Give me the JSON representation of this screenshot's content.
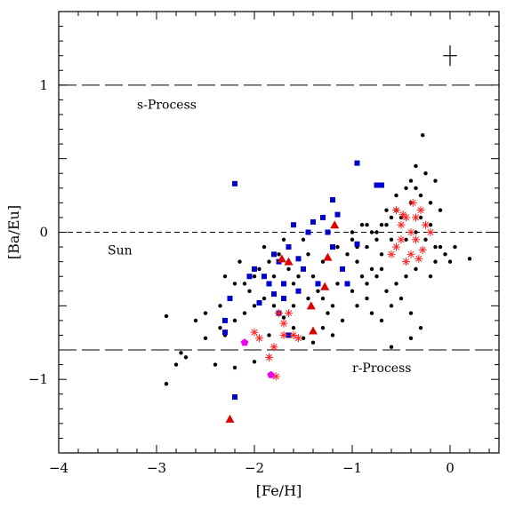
{
  "chart_data": {
    "type": "scatter",
    "xlabel": "[Fe/H]",
    "ylabel": "[Ba/Eu]",
    "xlim": [
      -4,
      0.5
    ],
    "ylim": [
      -1.5,
      1.5
    ],
    "x_ticks": [
      {
        "value": -4,
        "label": "−4"
      },
      {
        "value": -3,
        "label": "−3"
      },
      {
        "value": -2,
        "label": "−2"
      },
      {
        "value": -1,
        "label": "−1"
      },
      {
        "value": 0,
        "label": "0"
      }
    ],
    "y_ticks": [
      {
        "value": 1,
        "label": "1"
      },
      {
        "value": 0,
        "label": "0"
      },
      {
        "value": -1,
        "label": "−1"
      }
    ],
    "reference_lines": [
      {
        "y": 1.0,
        "label": "s-Process",
        "style": "long-dash",
        "label_x": -3.2,
        "label_y": 0.87
      },
      {
        "y": 0.0,
        "label": "Sun",
        "style": "short-dash",
        "label_x": -3.5,
        "label_y": -0.12
      },
      {
        "y": -0.8,
        "label": "r-Process",
        "style": "long-dash",
        "label_x": -1.0,
        "label_y": -0.92
      }
    ],
    "error_bar_marker": {
      "x": 0.0,
      "y": 1.2,
      "dx": 0.07,
      "dy": 0.07
    },
    "series": [
      {
        "marker": "circle",
        "color": "#000000",
        "points": [
          [
            -2.9,
            -0.57
          ],
          [
            -2.9,
            -1.03
          ],
          [
            -2.8,
            -0.9
          ],
          [
            -2.7,
            -0.85
          ],
          [
            -2.75,
            -0.82
          ],
          [
            -2.6,
            -0.6
          ],
          [
            -2.5,
            -0.55
          ],
          [
            -2.35,
            -0.65
          ],
          [
            -2.35,
            -0.5
          ],
          [
            -2.25,
            -0.45
          ],
          [
            -2.3,
            -0.3
          ],
          [
            -2.2,
            -0.35
          ],
          [
            -2.15,
            -0.2
          ],
          [
            -2.1,
            -0.35
          ],
          [
            -2.05,
            -0.4
          ],
          [
            -2.0,
            -0.3
          ],
          [
            -1.95,
            -0.25
          ],
          [
            -1.9,
            -0.1
          ],
          [
            -1.85,
            -0.2
          ],
          [
            -1.8,
            -0.3
          ],
          [
            -1.75,
            -0.15
          ],
          [
            -1.7,
            -0.05
          ],
          [
            -1.65,
            -0.25
          ],
          [
            -1.6,
            -0.35
          ],
          [
            -1.55,
            -0.3
          ],
          [
            -1.5,
            -0.05
          ],
          [
            -1.45,
            -0.15
          ],
          [
            -1.4,
            -0.3
          ],
          [
            -1.35,
            -0.4
          ],
          [
            -1.3,
            -0.45
          ],
          [
            -1.25,
            -0.55
          ],
          [
            -1.2,
            -0.5
          ],
          [
            -1.15,
            -0.35
          ],
          [
            -1.1,
            -0.25
          ],
          [
            -1.05,
            -0.15
          ],
          [
            -1.0,
            -0.05
          ],
          [
            -0.95,
            -0.2
          ],
          [
            -0.9,
            0.05
          ],
          [
            -0.85,
            -0.1
          ],
          [
            -0.8,
            -0.25
          ],
          [
            -0.75,
            0.0
          ],
          [
            -0.7,
            -0.15
          ],
          [
            -0.65,
            0.05
          ],
          [
            -0.6,
            -0.05
          ],
          [
            -0.55,
            0.15
          ],
          [
            -0.5,
            0.1
          ],
          [
            -0.45,
            -0.05
          ],
          [
            -0.4,
            0.2
          ],
          [
            -0.35,
            0.0
          ],
          [
            -0.3,
            0.1
          ],
          [
            -0.25,
            -0.05
          ],
          [
            -0.2,
            0.05
          ],
          [
            -0.15,
            -0.1
          ],
          [
            -0.1,
            0.15
          ],
          [
            -0.05,
            -0.15
          ],
          [
            0.0,
            -0.2
          ],
          [
            0.05,
            -0.1
          ],
          [
            -0.28,
            0.66
          ],
          [
            -0.35,
            0.45
          ],
          [
            -0.25,
            0.4
          ],
          [
            -0.15,
            0.35
          ],
          [
            -1.0,
            -0.4
          ],
          [
            -0.95,
            -0.5
          ],
          [
            -0.85,
            -0.45
          ],
          [
            -0.8,
            -0.55
          ],
          [
            -0.7,
            -0.6
          ],
          [
            -0.6,
            -0.5
          ],
          [
            -0.5,
            -0.45
          ],
          [
            -0.4,
            -0.55
          ],
          [
            -0.3,
            -0.65
          ],
          [
            -0.6,
            -0.78
          ],
          [
            -0.4,
            -0.72
          ],
          [
            -1.1,
            -0.6
          ],
          [
            -1.2,
            -0.7
          ],
          [
            -1.3,
            -0.65
          ],
          [
            -1.4,
            -0.75
          ],
          [
            -1.5,
            -0.72
          ],
          [
            -1.6,
            -0.65
          ],
          [
            -1.7,
            -0.58
          ],
          [
            -1.8,
            -0.5
          ],
          [
            -1.9,
            -0.45
          ],
          [
            -2.0,
            -0.5
          ],
          [
            -2.1,
            -0.55
          ],
          [
            -2.2,
            -0.6
          ],
          [
            -2.3,
            -0.7
          ],
          [
            -2.4,
            -0.9
          ],
          [
            -2.5,
            -0.72
          ],
          [
            -2.2,
            -0.92
          ],
          [
            -2.0,
            -0.88
          ],
          [
            -1.85,
            -0.7
          ],
          [
            -1.15,
            -0.1
          ],
          [
            -1.25,
            0.0
          ],
          [
            -1.3,
            -0.2
          ],
          [
            -1.45,
            -0.45
          ],
          [
            -1.6,
            -0.5
          ],
          [
            -0.9,
            -0.3
          ],
          [
            -0.85,
            -0.35
          ],
          [
            -0.75,
            -0.3
          ],
          [
            -0.7,
            -0.25
          ],
          [
            -0.65,
            -0.4
          ],
          [
            -0.55,
            -0.35
          ],
          [
            -0.45,
            -0.3
          ],
          [
            -0.35,
            -0.25
          ],
          [
            -0.2,
            -0.3
          ],
          [
            -0.15,
            -0.2
          ],
          [
            -0.1,
            -0.1
          ],
          [
            -0.6,
            0.1
          ],
          [
            -0.55,
            0.25
          ],
          [
            -0.45,
            0.3
          ],
          [
            -0.4,
            0.35
          ],
          [
            -0.35,
            0.3
          ],
          [
            -0.3,
            0.25
          ],
          [
            -0.2,
            0.2
          ],
          [
            -0.65,
            0.15
          ],
          [
            -0.7,
            0.05
          ],
          [
            -0.8,
            0.0
          ],
          [
            -0.75,
            -0.05
          ],
          [
            -0.85,
            0.05
          ],
          [
            -1.0,
            0.0
          ],
          [
            -0.95,
            -0.1
          ],
          [
            0.2,
            -0.18
          ]
        ]
      },
      {
        "marker": "square",
        "color": "#0000cc",
        "points": [
          [
            -2.2,
            -1.12
          ],
          [
            -2.3,
            -0.6
          ],
          [
            -2.3,
            -0.68
          ],
          [
            -2.25,
            -0.45
          ],
          [
            -2.2,
            0.33
          ],
          [
            -2.05,
            -0.3
          ],
          [
            -2.0,
            -0.25
          ],
          [
            -1.95,
            -0.48
          ],
          [
            -1.9,
            -0.3
          ],
          [
            -1.85,
            -0.35
          ],
          [
            -1.8,
            -0.15
          ],
          [
            -1.75,
            -0.2
          ],
          [
            -1.7,
            -0.45
          ],
          [
            -1.65,
            -0.1
          ],
          [
            -1.6,
            0.05
          ],
          [
            -1.55,
            -0.18
          ],
          [
            -1.55,
            -0.4
          ],
          [
            -1.5,
            -0.25
          ],
          [
            -1.45,
            0.0
          ],
          [
            -1.4,
            0.07
          ],
          [
            -1.35,
            -0.35
          ],
          [
            -1.3,
            0.1
          ],
          [
            -1.25,
            0.0
          ],
          [
            -1.2,
            0.22
          ],
          [
            -1.15,
            0.12
          ],
          [
            -1.1,
            -0.25
          ],
          [
            -1.05,
            -0.35
          ],
          [
            -0.95,
            -0.08
          ],
          [
            -1.2,
            -0.1
          ],
          [
            -0.95,
            0.47
          ],
          [
            -0.75,
            0.32
          ],
          [
            -0.7,
            0.32
          ],
          [
            -1.7,
            -0.35
          ],
          [
            -1.8,
            -0.42
          ],
          [
            -1.75,
            -0.55
          ],
          [
            -1.65,
            -0.7
          ]
        ]
      },
      {
        "marker": "triangle",
        "color": "#dd0000",
        "points": [
          [
            -2.25,
            -1.27
          ],
          [
            -1.72,
            -0.18
          ],
          [
            -1.65,
            -0.2
          ],
          [
            -1.42,
            -0.5
          ],
          [
            -1.4,
            -0.67
          ],
          [
            -1.25,
            -0.17
          ],
          [
            -1.28,
            -0.37
          ],
          [
            -1.18,
            0.05
          ]
        ]
      },
      {
        "marker": "asterisk",
        "color": "#ff2222",
        "points": [
          [
            -1.75,
            -0.55
          ],
          [
            -1.7,
            -0.62
          ],
          [
            -1.65,
            -0.55
          ],
          [
            -1.6,
            -0.7
          ],
          [
            -1.55,
            -0.72
          ],
          [
            -1.7,
            -0.7
          ],
          [
            -1.8,
            -0.78
          ],
          [
            -1.85,
            -0.85
          ],
          [
            -1.78,
            -0.98
          ],
          [
            -1.95,
            -0.72
          ],
          [
            -2.0,
            -0.68
          ],
          [
            -0.55,
            0.15
          ],
          [
            -0.5,
            0.05
          ],
          [
            -0.45,
            0.1
          ],
          [
            -0.4,
            0.0
          ],
          [
            -0.35,
            -0.05
          ],
          [
            -0.3,
            0.15
          ],
          [
            -0.25,
            0.05
          ],
          [
            -0.4,
            -0.15
          ],
          [
            -0.45,
            -0.2
          ],
          [
            -0.55,
            -0.1
          ],
          [
            -0.6,
            -0.15
          ],
          [
            -0.5,
            -0.05
          ],
          [
            -0.35,
            0.1
          ],
          [
            -0.28,
            -0.12
          ],
          [
            -0.2,
            0.0
          ],
          [
            -0.48,
            0.12
          ],
          [
            -0.38,
            0.2
          ],
          [
            -0.32,
            -0.18
          ]
        ]
      },
      {
        "marker": "pentagon",
        "color": "#ee00ee",
        "points": [
          [
            -2.1,
            -0.75
          ],
          [
            -1.83,
            -0.97
          ]
        ]
      }
    ]
  }
}
